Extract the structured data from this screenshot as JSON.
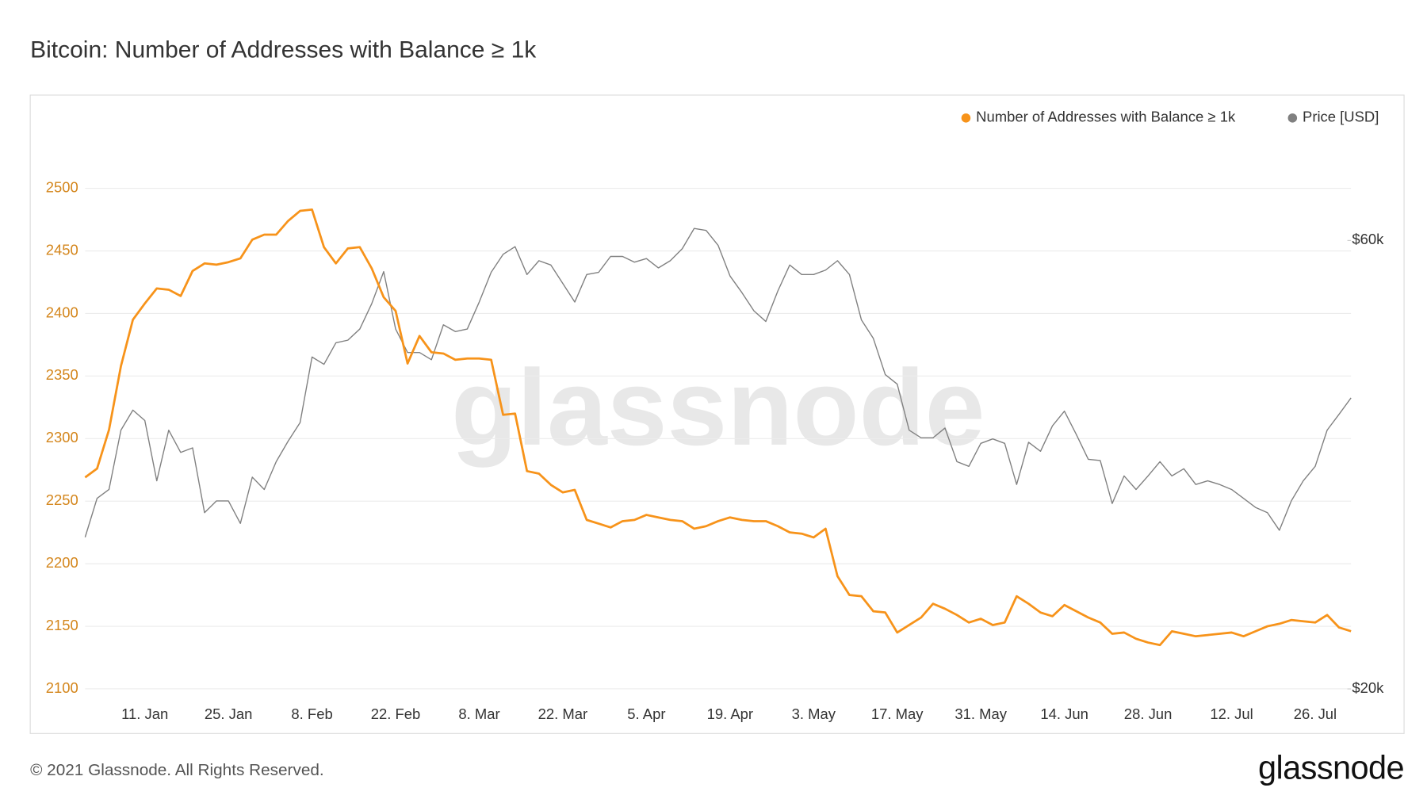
{
  "chart_data": {
    "type": "line",
    "title": "Bitcoin: Number of Addresses with Balance ≥ 1k",
    "categories": [
      null,
      null,
      null,
      null,
      null,
      "11. Jan",
      null,
      null,
      null,
      null,
      null,
      null,
      "25. Jan",
      null,
      null,
      null,
      null,
      null,
      null,
      "8. Feb",
      null,
      null,
      null,
      null,
      null,
      null,
      "22. Feb",
      null,
      null,
      null,
      null,
      null,
      null,
      "8. Mar",
      null,
      null,
      null,
      null,
      null,
      null,
      "22. Mar",
      null,
      null,
      null,
      null,
      null,
      null,
      "5. Apr",
      null,
      null,
      null,
      null,
      null,
      null,
      "19. Apr",
      null,
      null,
      null,
      null,
      null,
      null,
      "3. May",
      null,
      null,
      null,
      null,
      null,
      null,
      "17. May",
      null,
      null,
      null,
      null,
      null,
      null,
      "31. May",
      null,
      null,
      null,
      null,
      null,
      null,
      "14. Jun",
      null,
      null,
      null,
      null,
      null,
      null,
      "28. Jun",
      null,
      null,
      null,
      null,
      null,
      null,
      "12. Jul",
      null,
      null,
      null,
      null,
      null,
      null,
      "26. Jul",
      null,
      null,
      null
    ],
    "series": [
      {
        "name": "Number of Addresses with Balance ≥ 1k",
        "color": "#f7931a",
        "axis": "y",
        "values": [
          2269,
          2276,
          2307,
          2358,
          2395,
          2408,
          2420,
          2419,
          2414,
          2434,
          2440,
          2439,
          2441,
          2444,
          2459,
          2463,
          2463,
          2474,
          2482,
          2483,
          2453,
          2440,
          2452,
          2453,
          2436,
          2413,
          2402,
          2360,
          2382,
          2369,
          2368,
          2363,
          2364,
          2364,
          2363,
          2319,
          2320,
          2274,
          2272,
          2263,
          2257,
          2259,
          2235,
          2232,
          2229,
          2234,
          2235,
          2239,
          2237,
          2235,
          2234,
          2228,
          2230,
          2234,
          2237,
          2235,
          2234,
          2234,
          2230,
          2225,
          2224,
          2221,
          2228,
          2190,
          2175,
          2174,
          2162,
          2161,
          2145,
          2151,
          2157,
          2168,
          2164,
          2159,
          2153,
          2156,
          2151,
          2153,
          2174,
          2168,
          2161,
          2158,
          2167,
          2162,
          2157,
          2153,
          2144,
          2145,
          2140,
          2137,
          2135,
          2146,
          2144,
          2142,
          2143,
          2144,
          2145,
          2142,
          2146,
          2150,
          2152,
          2155,
          2154,
          2153,
          2159,
          2149,
          2146
        ]
      },
      {
        "name": "Price [USD]",
        "color": "#808080",
        "axis": "y2",
        "values": [
          29000,
          31900,
          32600,
          37700,
          39600,
          38600,
          33300,
          37700,
          35700,
          36100,
          30800,
          31700,
          31700,
          30000,
          33600,
          32600,
          34900,
          36700,
          38400,
          45100,
          44300,
          46700,
          47000,
          48300,
          51400,
          55600,
          48300,
          45600,
          45600,
          44800,
          48800,
          48000,
          48300,
          51600,
          55500,
          58000,
          59100,
          55200,
          57100,
          56500,
          54000,
          51600,
          55200,
          55500,
          57700,
          57700,
          56900,
          57400,
          56100,
          57100,
          58800,
          61800,
          61500,
          59300,
          55000,
          52800,
          50500,
          49200,
          53000,
          56500,
          55200,
          55200,
          55800,
          57100,
          55200,
          49400,
          47200,
          43200,
          42200,
          37700,
          37000,
          37000,
          37900,
          34900,
          34500,
          36500,
          36900,
          36500,
          33000,
          36600,
          35800,
          38100,
          39500,
          37300,
          35100,
          35000,
          31500,
          33700,
          32600,
          33700,
          34900,
          33700,
          34300,
          33000,
          33300,
          33000,
          32600,
          31900,
          31200,
          30800,
          29500,
          31700,
          33300,
          34500,
          37700,
          39200,
          40800
        ]
      }
    ],
    "ylim": [
      2095,
      2546
    ],
    "yticks": [
      2100,
      2150,
      2200,
      2250,
      2300,
      2350,
      2400,
      2450,
      2500
    ],
    "y2lim": [
      19700,
      78500
    ],
    "y2ticks": [
      {
        "value": 20000,
        "label": "$20k"
      },
      {
        "value": 60000,
        "label": "$60k"
      }
    ],
    "y2scale": "log",
    "grid": true,
    "legend": "top-right",
    "watermark": "glassnode"
  },
  "footer": {
    "copyright": "© 2021 Glassnode. All Rights Reserved.",
    "logo": "glassnode"
  }
}
